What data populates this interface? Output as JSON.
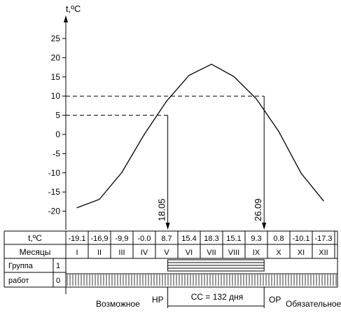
{
  "chart_data": {
    "type": "line",
    "ylabel": "t,ºC",
    "yticks": [
      25,
      20,
      15,
      10,
      5,
      0,
      -5,
      -10,
      -15,
      -20
    ],
    "ylim": [
      -22,
      29
    ],
    "months": [
      "I",
      "II",
      "III",
      "IV",
      "V",
      "VI",
      "VII",
      "VIII",
      "IX",
      "X",
      "XI",
      "XII"
    ],
    "temps_text": [
      "-19.1",
      "-16,9",
      "-9,9",
      "-0.0",
      "8.7",
      "15.4",
      "18.3",
      "15.1",
      "9.3",
      "0.8",
      "-10.1",
      "-17.3"
    ],
    "temps": [
      -19.1,
      -16.9,
      -9.9,
      0.0,
      8.7,
      15.4,
      18.3,
      15.1,
      9.3,
      0.8,
      -10.1,
      -17.3
    ],
    "reference_lines": [
      10,
      5
    ],
    "markers": [
      {
        "label": "18.05",
        "month_pos": 4.05,
        "y": 5
      },
      {
        "label": "26.09",
        "month_pos": 8.35,
        "y": 10
      }
    ],
    "season_span": {
      "start_month_pos": 4.05,
      "end_month_pos": 8.35
    },
    "grid": false
  },
  "table": {
    "temp_row_label": "t,ºC",
    "months_row_label": "Месяцы",
    "group_label_line1": "Группа",
    "group_label_line2": "работ",
    "group_levels": [
      "1",
      "0"
    ]
  },
  "bottom": {
    "possible": "Возможное",
    "np": "НР",
    "cc": "СС = 132 дня",
    "op": "ОР",
    "mandatory": "Обязательное"
  }
}
